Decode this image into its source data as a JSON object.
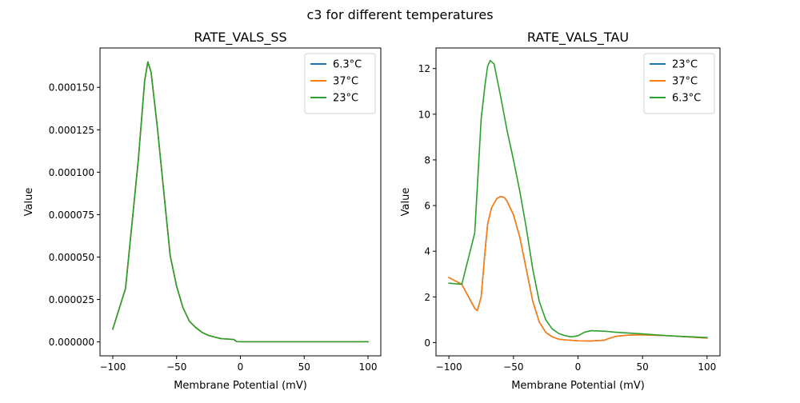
{
  "figure": {
    "suptitle": "c3 for different temperatures"
  },
  "colors": {
    "blue": "#1f77b4",
    "orange": "#ff7f0e",
    "green": "#2ca02c"
  },
  "chart_data": [
    {
      "type": "line",
      "title": "RATE_VALS_SS",
      "xlabel": "Membrane Potential (mV)",
      "ylabel": "Value",
      "xlim": [
        -110,
        110
      ],
      "ylim": [
        -8.2e-06,
        0.0001732
      ],
      "xticks": [
        -100,
        -50,
        0,
        50,
        100
      ],
      "xtick_labels": [
        "−100",
        "−50",
        "0",
        "50",
        "100"
      ],
      "yticks": [
        0,
        2.5e-05,
        5e-05,
        7.5e-05,
        0.0001,
        0.000125,
        0.00015
      ],
      "ytick_labels": [
        "0.000000",
        "0.000025",
        "0.000050",
        "0.000075",
        "0.000100",
        "0.000125",
        "0.000150"
      ],
      "grid": false,
      "legend_position": "top-right",
      "series": [
        {
          "name": "6.3°C",
          "color_key": "blue",
          "x": [
            -100,
            -90,
            -80,
            -75,
            -72.5,
            -70,
            -65,
            -60,
            -55,
            -50,
            -45,
            -40,
            -35,
            -30,
            -25,
            -20,
            -15,
            -10,
            -5,
            -3,
            0,
            50,
            100
          ],
          "y": [
            7.5e-06,
            3.15e-05,
            0.000107,
            0.000154,
            0.000165,
            0.000159,
            0.000126,
            8.83e-05,
            5.08e-05,
            3.29e-05,
            2.02e-05,
            1.22e-05,
            8.5e-06,
            5.6e-06,
            3.8e-06,
            2.8e-06,
            1.9e-06,
            1.7e-06,
            1.4e-06,
            2e-07,
            1e-07,
            1e-07,
            1e-07
          ]
        },
        {
          "name": "37°C",
          "color_key": "orange",
          "x": [
            -100,
            -90,
            -80,
            -75,
            -72.5,
            -70,
            -65,
            -60,
            -55,
            -50,
            -45,
            -40,
            -35,
            -30,
            -25,
            -20,
            -15,
            -10,
            -5,
            -3,
            0,
            50,
            100
          ],
          "y": [
            7.5e-06,
            3.15e-05,
            0.000107,
            0.000154,
            0.000165,
            0.000159,
            0.000126,
            8.83e-05,
            5.08e-05,
            3.29e-05,
            2.02e-05,
            1.22e-05,
            8.5e-06,
            5.6e-06,
            3.8e-06,
            2.8e-06,
            1.9e-06,
            1.7e-06,
            1.4e-06,
            2e-07,
            1e-07,
            1e-07,
            1e-07
          ]
        },
        {
          "name": "23°C",
          "color_key": "green",
          "x": [
            -100,
            -90,
            -80,
            -75,
            -72.5,
            -70,
            -65,
            -60,
            -55,
            -50,
            -45,
            -40,
            -35,
            -30,
            -25,
            -20,
            -15,
            -10,
            -5,
            -3,
            0,
            50,
            100
          ],
          "y": [
            7.5e-06,
            3.15e-05,
            0.000107,
            0.000154,
            0.000165,
            0.000159,
            0.000126,
            8.83e-05,
            5.08e-05,
            3.29e-05,
            2.02e-05,
            1.22e-05,
            8.5e-06,
            5.6e-06,
            3.8e-06,
            2.8e-06,
            1.9e-06,
            1.7e-06,
            1.4e-06,
            2e-07,
            1e-07,
            1e-07,
            1e-07
          ]
        }
      ]
    },
    {
      "type": "line",
      "title": "RATE_VALS_TAU",
      "xlabel": "Membrane Potential (mV)",
      "ylabel": "Value",
      "xlim": [
        -110,
        110
      ],
      "ylim": [
        -0.58,
        12.9
      ],
      "xticks": [
        -100,
        -50,
        0,
        50,
        100
      ],
      "xtick_labels": [
        "−100",
        "−50",
        "0",
        "50",
        "100"
      ],
      "yticks": [
        0,
        2,
        4,
        6,
        8,
        10,
        12
      ],
      "ytick_labels": [
        "0",
        "2",
        "4",
        "6",
        "8",
        "10",
        "12"
      ],
      "grid": false,
      "legend_position": "top-right",
      "series": [
        {
          "name": "23°C",
          "color_key": "blue",
          "x": [
            -100,
            -90,
            -80,
            -78,
            -75,
            -72,
            -70,
            -67,
            -63,
            -60,
            -57,
            -55,
            -50,
            -45,
            -40,
            -35,
            -30,
            -25,
            -20,
            -15,
            -10,
            0,
            10,
            20,
            25,
            30,
            40,
            50,
            70,
            100
          ],
          "y": [
            2.85,
            2.55,
            1.5,
            1.4,
            2.0,
            4.0,
            5.2,
            5.9,
            6.3,
            6.4,
            6.35,
            6.2,
            5.6,
            4.6,
            3.2,
            1.8,
            0.9,
            0.45,
            0.25,
            0.15,
            0.12,
            0.08,
            0.07,
            0.1,
            0.2,
            0.28,
            0.33,
            0.34,
            0.3,
            0.2
          ]
        },
        {
          "name": "37°C",
          "color_key": "orange",
          "x": [
            -100,
            -90,
            -80,
            -78,
            -75,
            -72,
            -70,
            -67,
            -63,
            -60,
            -57,
            -55,
            -50,
            -45,
            -40,
            -35,
            -30,
            -25,
            -20,
            -15,
            -10,
            0,
            10,
            20,
            25,
            30,
            40,
            50,
            70,
            100
          ],
          "y": [
            2.85,
            2.55,
            1.5,
            1.4,
            2.0,
            4.0,
            5.2,
            5.9,
            6.3,
            6.4,
            6.35,
            6.2,
            5.6,
            4.6,
            3.2,
            1.8,
            0.9,
            0.45,
            0.25,
            0.15,
            0.12,
            0.08,
            0.07,
            0.1,
            0.2,
            0.28,
            0.33,
            0.34,
            0.3,
            0.2
          ]
        },
        {
          "name": "6.3°C",
          "color_key": "green",
          "x": [
            -100,
            -90,
            -80,
            -75,
            -72,
            -70,
            -68,
            -65,
            -60,
            -55,
            -50,
            -45,
            -40,
            -35,
            -30,
            -25,
            -20,
            -15,
            -10,
            -5,
            0,
            5,
            10,
            20,
            30,
            50,
            70,
            100
          ],
          "y": [
            2.6,
            2.55,
            4.8,
            9.8,
            11.3,
            12.1,
            12.35,
            12.2,
            10.8,
            9.3,
            8.0,
            6.6,
            5.0,
            3.2,
            1.8,
            1.0,
            0.6,
            0.4,
            0.3,
            0.25,
            0.3,
            0.45,
            0.52,
            0.5,
            0.45,
            0.38,
            0.3,
            0.22
          ]
        }
      ]
    }
  ]
}
